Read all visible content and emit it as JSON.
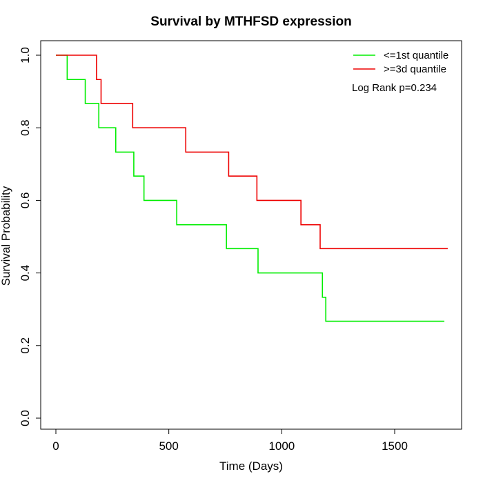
{
  "chart_data": {
    "type": "line",
    "title": "Survival by MTHFSD expression",
    "xlabel": "Time (Days)",
    "ylabel": "Survival Probability",
    "xlim": [
      0,
      1750
    ],
    "ylim": [
      0,
      1.0
    ],
    "x_ticks": [
      0,
      500,
      1000,
      1500
    ],
    "x_tick_labels": [
      "0",
      "500",
      "1000",
      "1500"
    ],
    "y_ticks": [
      0,
      0.2,
      0.4,
      0.6,
      0.8,
      1.0
    ],
    "y_tick_labels": [
      "0.0",
      "0.2",
      "0.4",
      "0.6",
      "0.8",
      "1.0"
    ],
    "grid": false,
    "legend_position": "top-right",
    "annotation": "Log Rank p=0.234",
    "series": [
      {
        "name": "<=1st quantile",
        "color": "#00ee00",
        "step_times": [
          0,
          50,
          130,
          190,
          265,
          345,
          390,
          535,
          755,
          895,
          1180,
          1195,
          1720
        ],
        "step_values": [
          1.0,
          0.933,
          0.867,
          0.8,
          0.733,
          0.667,
          0.6,
          0.533,
          0.467,
          0.4,
          0.333,
          0.267,
          0.267
        ]
      },
      {
        "name": ">=3d quantile",
        "color": "#ee0000",
        "step_times": [
          0,
          180,
          200,
          340,
          575,
          765,
          890,
          1085,
          1170,
          1735
        ],
        "step_values": [
          1.0,
          0.933,
          0.867,
          0.8,
          0.733,
          0.667,
          0.6,
          0.533,
          0.467,
          0.467
        ]
      }
    ]
  }
}
